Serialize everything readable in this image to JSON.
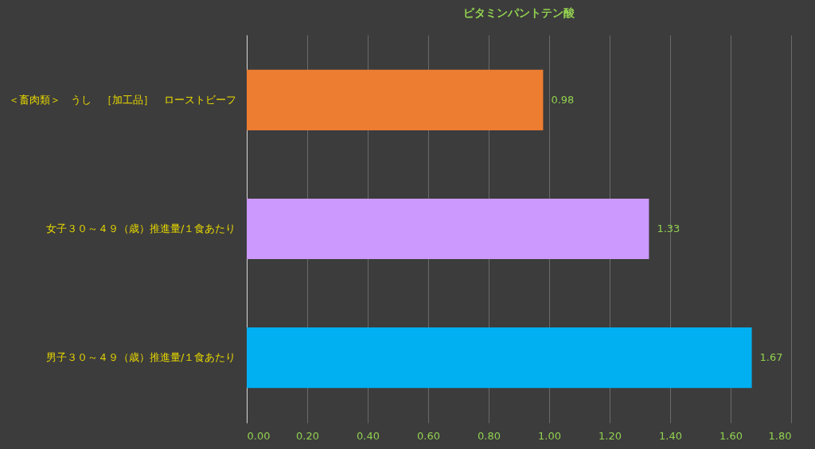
{
  "chart_data": {
    "type": "bar",
    "orientation": "horizontal",
    "title": "ビタミンパントテン酸",
    "categories": [
      "＜畜肉類＞　うし　［加工品］　ローストビーフ",
      "女子３０～４９（歳）推進量/１食あたり",
      "男子３０～４９（歳）推進量/１食あたり"
    ],
    "values": [
      0.98,
      1.33,
      1.67
    ],
    "colors": [
      "#ed7d31",
      "#cc99ff",
      "#00b0f0"
    ],
    "xlim": [
      0,
      1.8
    ],
    "xticks": [
      {
        "value": 0,
        "label": "0.00"
      },
      {
        "value": 0.2,
        "label": "0.20"
      },
      {
        "value": 0.4,
        "label": "0.40"
      },
      {
        "value": 0.6,
        "label": "0.60"
      },
      {
        "value": 0.8,
        "label": "0.80"
      },
      {
        "value": 1.0,
        "label": "1.00"
      },
      {
        "value": 1.2,
        "label": "1.20"
      },
      {
        "value": 1.4,
        "label": "1.40"
      },
      {
        "value": 1.6,
        "label": "1.60"
      },
      {
        "value": 1.8,
        "label": "1.80"
      }
    ],
    "grid": "x",
    "data_labels": true
  }
}
